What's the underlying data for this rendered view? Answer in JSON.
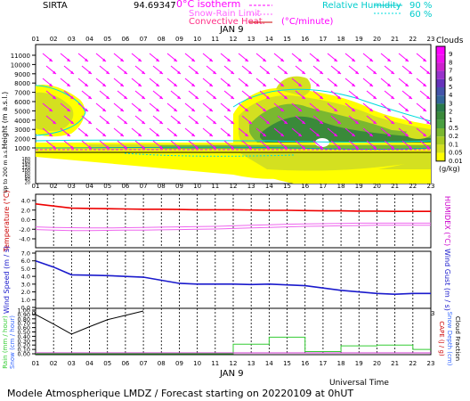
{
  "header": {
    "station": "SIRTA",
    "station_value": "94.69347",
    "legend_isotherm": "0°C isotherm",
    "legend_snow_rain": "Snow-Rain Limit",
    "legend_convective": "Convective Heat.",
    "legend_convective_unit": "(°C/minute)",
    "legend_rh": "Relative Humidity",
    "rh_90": "90 %",
    "rh_60": "60 %"
  },
  "footer": {
    "universal_time": "Universal Time",
    "title": "Modele Atmospherique LMDZ / Forecast starting on 20220109 at 0hUT"
  },
  "hours": [
    "01",
    "02",
    "03",
    "04",
    "05",
    "06",
    "07",
    "08",
    "09",
    "10",
    "11",
    "12",
    "13",
    "14",
    "15",
    "16",
    "17",
    "18",
    "19",
    "20",
    "21",
    "22",
    "23"
  ],
  "date_label": "JAN  9",
  "clouds_panel": {
    "y_label": "Height (m a.s.l.)",
    "y_label_low": "Up to 200 m a.s.l.",
    "y_ticks_upper": [
      "11000",
      "10000",
      "9000",
      "8000",
      "7000",
      "6000",
      "5000",
      "4000",
      "3000",
      "2000",
      "1000"
    ],
    "y_ticks_lower": [
      "180",
      "160",
      "140",
      "120",
      "100",
      "80",
      "60",
      "40",
      "20"
    ],
    "colorbar_title": "Clouds",
    "colorbar_unit": "(g/kg)",
    "colorbar_ticks": [
      "9",
      "8",
      "7",
      "6",
      "5",
      "4",
      "3",
      "2",
      "1",
      "0.5",
      "0.2",
      "0.1",
      "0.05",
      "0.01"
    ],
    "colorbar_colors": [
      "#ff00ff",
      "#ee11ee",
      "#cc22cc",
      "#9933cc",
      "#6633bb",
      "#4455aa",
      "#336699",
      "#2a7a4a",
      "#3a8a3a",
      "#4aa040",
      "#7ab830",
      "#a8cc22",
      "#d4e020",
      "#ffff00"
    ]
  },
  "temperature_panel": {
    "left_label": "Temperature (°C)",
    "right_label": "HUMIDEX (°C)",
    "y_ticks": [
      "4.0",
      "2.0",
      "0.0",
      "-2.0",
      "-4.0"
    ]
  },
  "wind_panel": {
    "left_label": "Wind Speed (m / s)",
    "right_label": "Wind Gust (m / s)",
    "y_ticks": [
      "7.0",
      "6.0",
      "5.0",
      "4.0",
      "3.0",
      "2.0",
      "1.0",
      "0.0"
    ]
  },
  "precip_panel": {
    "left_label_rain": "Rain (mm / hour)",
    "left_label_snow": "Snow (cm / hour)",
    "right_label_cape": "CAPE (J / g)",
    "right_label_snow": "Snow Depth (cm)",
    "right_label_cloud": "Cloud Fraction",
    "y_ticks": [
      "1.00",
      "0.90",
      "0.80",
      "0.70",
      "0.60",
      "0.50",
      "0.40",
      "0.30",
      "0.20",
      "0.10",
      "0.00"
    ]
  },
  "chart_data": [
    {
      "type": "line",
      "panel": "temperature",
      "x": [
        1,
        2,
        3,
        4,
        5,
        6,
        7,
        8,
        9,
        10,
        11,
        12,
        13,
        14,
        15,
        16,
        17,
        18,
        19,
        20,
        21,
        22,
        23
      ],
      "ylim": [
        -5,
        5
      ],
      "series": [
        {
          "color": "#ee0000",
          "values": [
            3.2,
            2.8,
            2.4,
            2.35,
            2.3,
            2.25,
            2.2,
            2.2,
            2.15,
            2.1,
            2.1,
            2.1,
            2.05,
            2.0,
            2.0,
            1.95,
            1.9,
            1.9,
            1.85,
            1.85,
            1.8,
            1.8,
            1.8
          ]
        },
        {
          "color": "#ee66ee",
          "values": [
            -1.6,
            -1.7,
            -1.8,
            -1.8,
            -1.75,
            -1.7,
            -1.7,
            -1.65,
            -1.6,
            -1.55,
            -1.5,
            -1.4,
            -1.3,
            -1.2,
            -1.1,
            -1.0,
            -0.95,
            -0.9,
            -0.85,
            -0.8,
            -0.8,
            -0.8,
            -0.8
          ]
        },
        {
          "color": "#ee66ee",
          "values": [
            -1.1,
            -1.2,
            -1.25,
            -1.3,
            -1.3,
            -1.25,
            -1.2,
            -1.15,
            -1.1,
            -1.05,
            -1.0,
            -0.9,
            -0.8,
            -0.7,
            -0.6,
            -0.55,
            -0.5,
            -0.45,
            -0.4,
            -0.4,
            -0.4,
            -0.4,
            -0.4
          ]
        }
      ]
    },
    {
      "type": "line",
      "panel": "wind",
      "x": [
        1,
        2,
        3,
        4,
        5,
        6,
        7,
        8,
        9,
        10,
        11,
        12,
        13,
        14,
        15,
        16,
        17,
        18,
        19,
        20,
        21,
        22,
        23
      ],
      "ylim": [
        0,
        7
      ],
      "series": [
        {
          "color": "#1a1acc",
          "values": [
            6.0,
            5.2,
            4.2,
            4.15,
            4.1,
            4.0,
            3.9,
            3.5,
            3.1,
            3.0,
            3.0,
            3.0,
            2.95,
            3.0,
            2.9,
            2.8,
            2.5,
            2.2,
            2.0,
            1.8,
            1.7,
            1.8,
            1.8
          ]
        }
      ]
    },
    {
      "type": "line",
      "panel": "precipitation",
      "x": [
        1,
        2,
        3,
        4,
        5,
        6,
        7,
        8,
        9,
        10,
        11,
        12,
        13,
        14,
        15,
        16,
        17,
        18,
        19,
        20,
        21,
        22,
        23
      ],
      "ylim": [
        0,
        1.0
      ],
      "series": [
        {
          "color": "#000000",
          "values": [
            0.9,
            0.68,
            0.45,
            0.62,
            0.78,
            0.88,
            0.98,
            null,
            null,
            null,
            null,
            null,
            null,
            null,
            null,
            null,
            null,
            null,
            null,
            null,
            null,
            null,
            null
          ]
        },
        {
          "color": "#33cc33",
          "values": [
            0,
            0,
            0,
            0,
            0,
            0,
            0,
            0,
            0,
            0,
            0,
            0.22,
            0.22,
            0.38,
            0.38,
            0.05,
            0.05,
            0.18,
            0.18,
            0.2,
            0.2,
            0.1,
            0.1
          ]
        },
        {
          "color": "#cc33cc",
          "values": [
            0.02,
            0.02,
            0.02,
            0.02,
            0.02,
            0.02,
            0.02,
            0.02,
            0.02,
            0.02,
            0.02,
            0.02,
            0.02,
            0.02,
            0.02,
            0.02,
            0.02,
            0.02,
            0.02,
            0.02,
            0.02,
            0.02,
            0.02
          ]
        }
      ]
    }
  ]
}
